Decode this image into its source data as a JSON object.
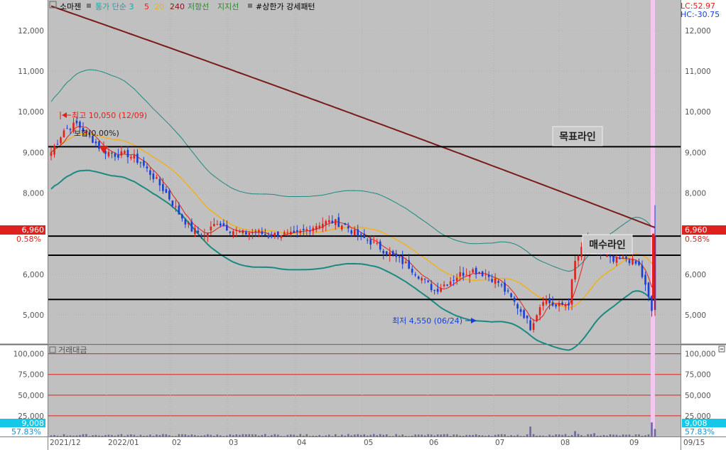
{
  "legend": {
    "stock_name": "소마젠",
    "bollinger_label": "통가 단순 3",
    "ma": [
      {
        "label": "5",
        "color": "#e0201c"
      },
      {
        "label": "20",
        "color": "#f0b020"
      },
      {
        "label": "240",
        "color": "#7a1a1a"
      }
    ],
    "resistance_label": "저항선",
    "support_label": "지지선",
    "pattern_label": "#상한가 강세패턴"
  },
  "lc_hc": {
    "lc": "LC:52.97",
    "hc": "HC:-30.75"
  },
  "price_axis": {
    "ticks": [
      "12,000",
      "11,000",
      "10,000",
      "9,000",
      "8,000",
      "6,000",
      "5,000"
    ],
    "current_price": "6,960",
    "current_change": "0.58%"
  },
  "volume_axis": {
    "ticks": [
      "100,000",
      "75,000",
      "50,000",
      "25,000"
    ],
    "current_volume": "9,008",
    "current_ratio": "57.83%"
  },
  "volume_title": "거래대금",
  "date_labels": [
    "2021/12",
    "2022/01",
    "02",
    "03",
    "04",
    "05",
    "06",
    "07",
    "08",
    "09",
    "09/15"
  ],
  "annotations": {
    "high": "최고 10,050 (12/09)",
    "low": "최저 4,550 (06/24)",
    "flat": "보합(0.00%)",
    "target_line": "목표라인",
    "buy_line": "매수라인"
  },
  "chart_data": {
    "type": "candlestick",
    "price_range": [
      4300,
      12750
    ],
    "volume_range": [
      0,
      110000
    ],
    "horizontal_lines": [
      {
        "name": "목표라인",
        "value": 9140
      },
      {
        "name": "resistance",
        "value": 6940
      },
      {
        "name": "mid",
        "value": 6470
      },
      {
        "name": "support",
        "value": 5380
      }
    ],
    "ma240": {
      "start": 12600,
      "end": 7150
    },
    "bollinger_upper_peak": 11250,
    "bollinger_lower_low": 4490,
    "colors": {
      "up": "#e0201c",
      "down": "#1a3fd6",
      "ma5": "#e0201c",
      "ma20": "#f0b020",
      "ma240": "#7a1a1a",
      "bollinger": "#1a8a80",
      "background": "#c0c0c0"
    }
  }
}
